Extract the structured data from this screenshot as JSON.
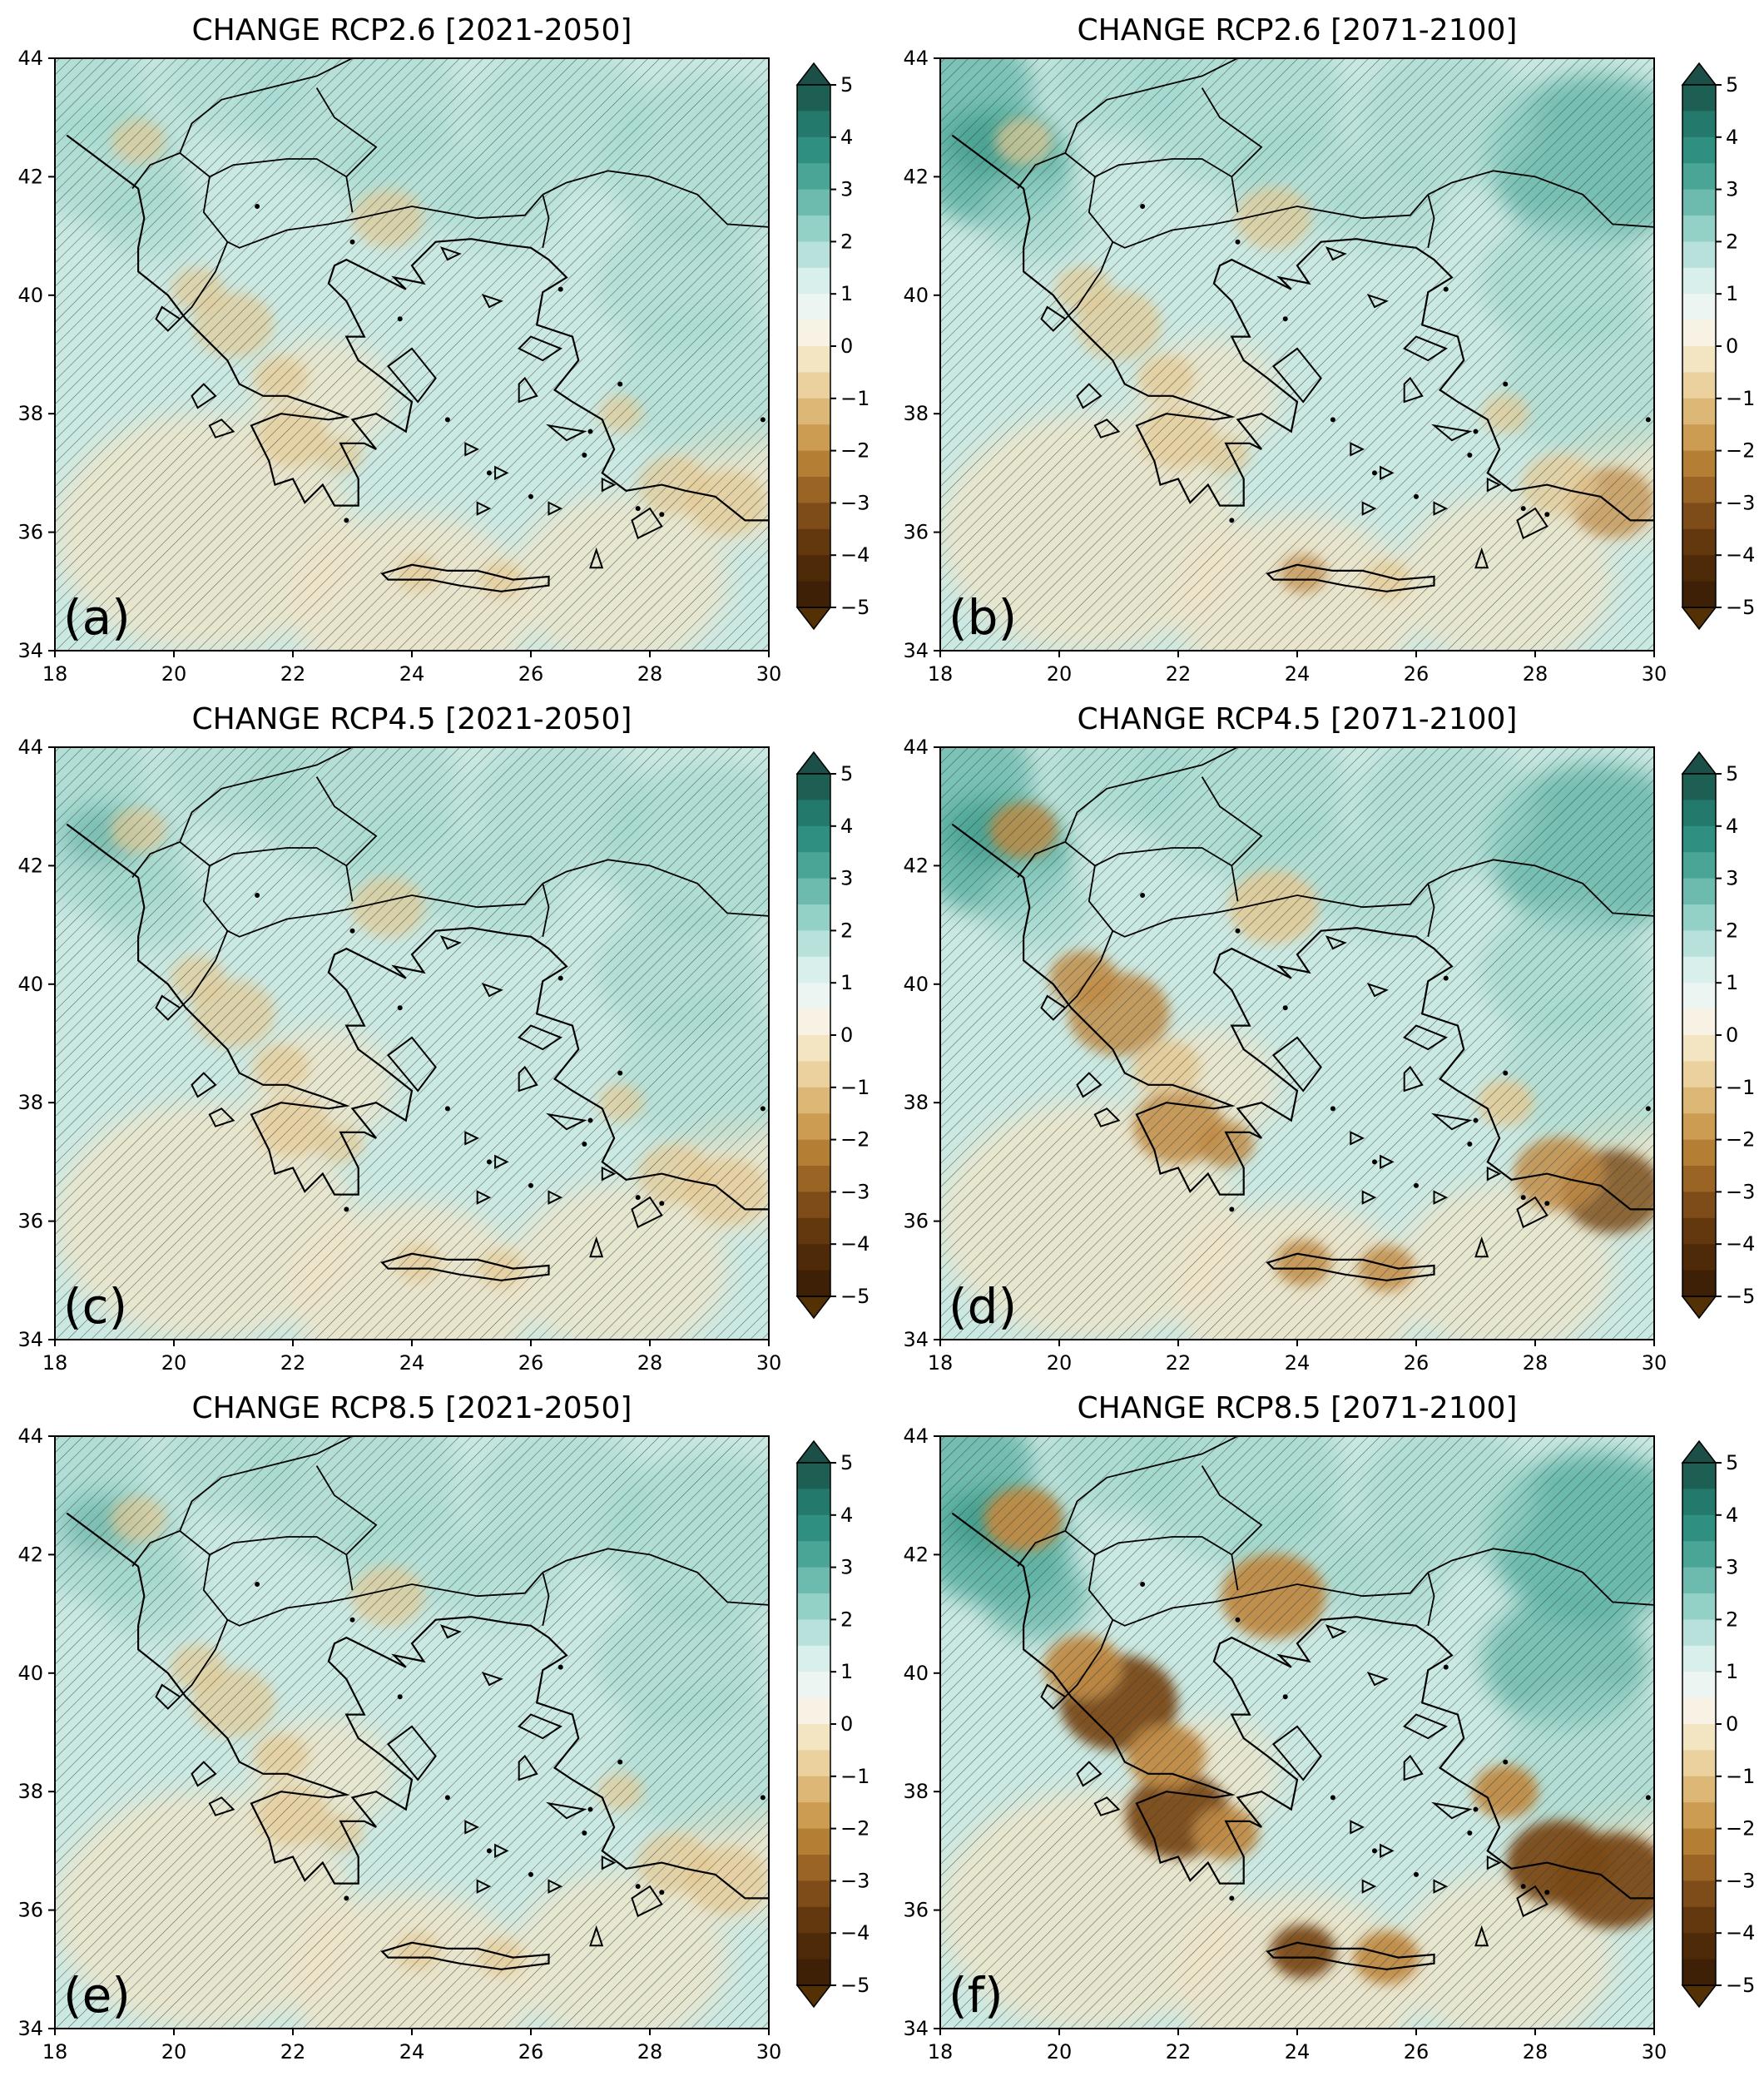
{
  "figure": {
    "x_ticks": [
      "18",
      "20",
      "22",
      "24",
      "26",
      "28",
      "30"
    ],
    "y_ticks": [
      "34",
      "36",
      "38",
      "40",
      "42",
      "44"
    ],
    "colorbar_ticks": [
      "5",
      "4",
      "3",
      "2",
      "1",
      "0",
      "−1",
      "−2",
      "−3",
      "−4",
      "−5"
    ],
    "colorbar_colors": [
      "#1d5f53",
      "#237a6c",
      "#2f8f80",
      "#4aa597",
      "#6dbbae",
      "#93d0c6",
      "#b7e1da",
      "#d8efeb",
      "#edf5f3",
      "#f7f2e4",
      "#f3e4c2",
      "#ead19e",
      "#dcb776",
      "#cc9c53",
      "#b57e35",
      "#9a6424",
      "#7e4c18",
      "#63380f",
      "#4e2a08",
      "#3d2006"
    ],
    "colorbar_top_color": "#1c4f47",
    "colorbar_bottom_color": "#543005",
    "colors": {
      "teal_light": "#cbe9e3",
      "teal_mid": "#9fd6cb",
      "teal_strong": "#5fb3a4",
      "teal_dark": "#2c8b7c",
      "tan_light": "#f2e4c6",
      "tan_mid": "#e3c892",
      "brown": "#bf8a45",
      "brown_dark": "#7a4a16",
      "hatch": "#2e3a3a"
    }
  },
  "panels": [
    {
      "title": "CHANGE RCP2.6 [2021-2050]",
      "label": "(a)",
      "intensity": 0.3,
      "pos_bias": 0.0
    },
    {
      "title": "CHANGE RCP2.6 [2071-2100]",
      "label": "(b)",
      "intensity": 0.4,
      "pos_bias": 0.5
    },
    {
      "title": "CHANGE RCP4.5 [2021-2050]",
      "label": "(c)",
      "intensity": 0.35,
      "pos_bias": 0.15
    },
    {
      "title": "CHANGE RCP4.5 [2071-2100]",
      "label": "(d)",
      "intensity": 0.7,
      "pos_bias": 0.5
    },
    {
      "title": "CHANGE RCP8.5 [2021-2050]",
      "label": "(e)",
      "intensity": 0.35,
      "pos_bias": 0.15
    },
    {
      "title": "CHANGE RCP8.5 [2071-2100]",
      "label": "(f)",
      "intensity": 1.0,
      "pos_bias": 0.7
    }
  ]
}
